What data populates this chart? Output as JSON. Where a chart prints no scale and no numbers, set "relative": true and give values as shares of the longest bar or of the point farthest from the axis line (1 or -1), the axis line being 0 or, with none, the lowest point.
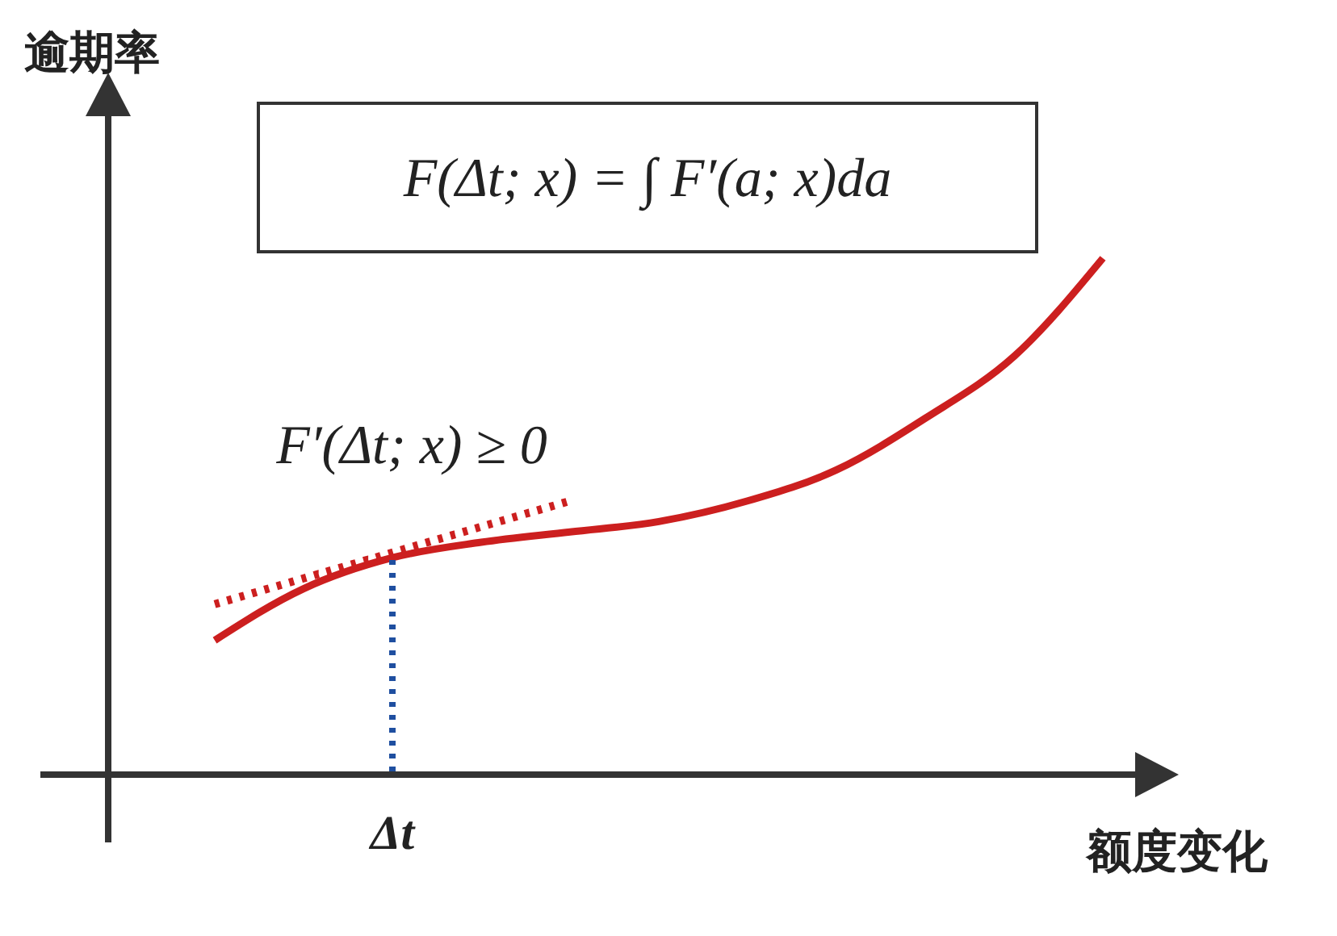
{
  "chart_data": {
    "type": "line",
    "relative": true,
    "ylabel": "逾期率",
    "xlabel": "额度变化",
    "categories": [
      null,
      null,
      null,
      null,
      null,
      null,
      null,
      null,
      null,
      null,
      null
    ],
    "series": [
      {
        "color": "#cc1f1f",
        "line_style": "solid",
        "values": [
          0.26,
          0.36,
          0.42,
          0.45,
          0.47,
          0.49,
          0.53,
          0.59,
          0.69,
          0.81,
          1
        ]
      },
      {
        "color": "#cc1f1f",
        "line_style": "dotted",
        "values": [
          0.33,
          0.38,
          0.43,
          0.48,
          0.53,
          null,
          null,
          null,
          null,
          null,
          null
        ]
      }
    ],
    "annotations": [
      "F(Δt; x) = ∫ F′(a; x)da",
      "F′(Δt; x) ≥ 0",
      "Δt"
    ],
    "grid": false,
    "marker": "none"
  }
}
